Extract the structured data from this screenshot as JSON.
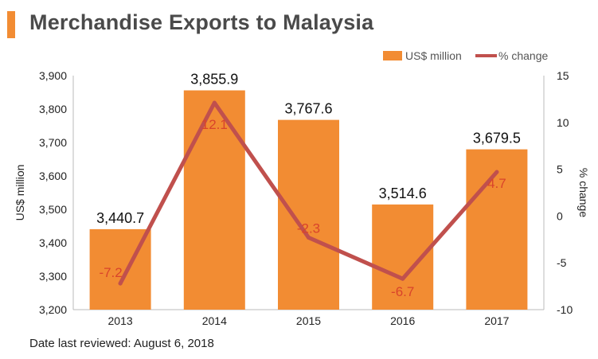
{
  "title": "Merchandise Exports to Malaysia",
  "footer": "Date last reviewed: August 6, 2018",
  "colors": {
    "bar": "#f28c33",
    "line": "#c0504d",
    "accent": "#f28c33",
    "line_label": "#d9442b"
  },
  "chart_data": {
    "type": "bar+line",
    "categories": [
      "2013",
      "2014",
      "2015",
      "2016",
      "2017"
    ],
    "series": [
      {
        "name": "US$ million",
        "type": "bar",
        "axis": "left",
        "values": [
          3440.7,
          3855.9,
          3767.6,
          3514.6,
          3679.5
        ],
        "labels": [
          "3,440.7",
          "3,855.9",
          "3,767.6",
          "3,514.6",
          "3,679.5"
        ]
      },
      {
        "name": "% change",
        "type": "line",
        "axis": "right",
        "values": [
          -7.2,
          12.1,
          -2.3,
          -6.7,
          4.7
        ],
        "labels": [
          "-7.2",
          "12.1",
          "-2.3",
          "-6.7",
          "4.7"
        ]
      }
    ],
    "ylabel_left": "US$ million",
    "ylabel_right": "% change",
    "ylim_left": [
      3200,
      3900
    ],
    "ylim_right": [
      -10,
      15
    ],
    "yticks_left": [
      "3,200",
      "3,300",
      "3,400",
      "3,500",
      "3,600",
      "3,700",
      "3,800",
      "3,900"
    ],
    "yticks_right": [
      "-10",
      "-5",
      "0",
      "5",
      "10",
      "15"
    ],
    "legend": [
      "US$ million",
      "% change"
    ],
    "legend_position": "top-right"
  }
}
